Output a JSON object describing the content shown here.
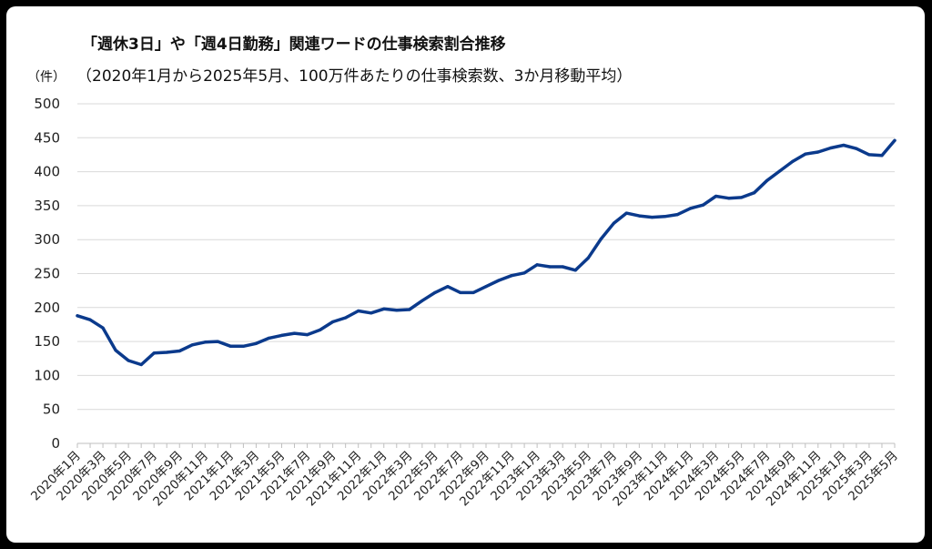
{
  "chart_data": {
    "type": "line",
    "title": "「週休3日」や「週4日勤務」関連ワードの仕事検索割合推移",
    "subtitle": "（2020年1月から2025年5月、100万件あたりの仕事検索数、3か月移動平均）",
    "ylabel": "（件）",
    "xlabel": "",
    "ylim": [
      0,
      500
    ],
    "yticks": [
      0,
      50,
      100,
      150,
      200,
      250,
      300,
      350,
      400,
      450,
      500
    ],
    "grid": true,
    "legend": "none",
    "line_color": "#0b3a8c",
    "x": [
      "2020年1月",
      "2020年2月",
      "2020年3月",
      "2020年4月",
      "2020年5月",
      "2020年6月",
      "2020年7月",
      "2020年8月",
      "2020年9月",
      "2020年10月",
      "2020年11月",
      "2020年12月",
      "2021年1月",
      "2021年2月",
      "2021年3月",
      "2021年4月",
      "2021年5月",
      "2021年6月",
      "2021年7月",
      "2021年8月",
      "2021年9月",
      "2021年10月",
      "2021年11月",
      "2021年12月",
      "2022年1月",
      "2022年2月",
      "2022年3月",
      "2022年4月",
      "2022年5月",
      "2022年6月",
      "2022年7月",
      "2022年8月",
      "2022年9月",
      "2022年10月",
      "2022年11月",
      "2022年12月",
      "2023年1月",
      "2023年2月",
      "2023年3月",
      "2023年4月",
      "2023年5月",
      "2023年6月",
      "2023年7月",
      "2023年8月",
      "2023年9月",
      "2023年10月",
      "2023年11月",
      "2023年12月",
      "2024年1月",
      "2024年2月",
      "2024年3月",
      "2024年4月",
      "2024年5月",
      "2024年6月",
      "2024年7月",
      "2024年8月",
      "2024年9月",
      "2024年10月",
      "2024年11月",
      "2024年12月",
      "2025年1月",
      "2025年2月",
      "2025年3月",
      "2025年4月",
      "2025年5月"
    ],
    "xtick_labels": [
      "2020年1月",
      "2020年3月",
      "2020年5月",
      "2020年7月",
      "2020年9月",
      "2020年11月",
      "2021年1月",
      "2021年3月",
      "2021年5月",
      "2021年7月",
      "2021年9月",
      "2021年11月",
      "2022年1月",
      "2022年3月",
      "2022年5月",
      "2022年7月",
      "2022年9月",
      "2022年11月",
      "2023年1月",
      "2023年3月",
      "2023年5月",
      "2023年7月",
      "2023年9月",
      "2023年11月",
      "2024年1月",
      "2024年3月",
      "2024年5月",
      "2024年7月",
      "2024年9月",
      "2024年11月",
      "2025年1月",
      "2025年3月",
      "2025年5月"
    ],
    "series": [
      {
        "values": [
          188,
          182,
          170,
          137,
          122,
          116,
          133,
          134,
          136,
          145,
          149,
          150,
          143,
          143,
          147,
          155,
          159,
          162,
          160,
          167,
          179,
          185,
          195,
          192,
          198,
          196,
          197,
          210,
          222,
          231,
          222,
          222,
          231,
          240,
          247,
          251,
          263,
          260,
          260,
          255,
          273,
          301,
          324,
          339,
          335,
          333,
          334,
          337,
          346,
          351,
          364,
          361,
          362,
          369,
          387,
          401,
          415,
          426,
          429,
          435,
          439,
          434,
          425,
          424,
          446
        ]
      }
    ]
  }
}
